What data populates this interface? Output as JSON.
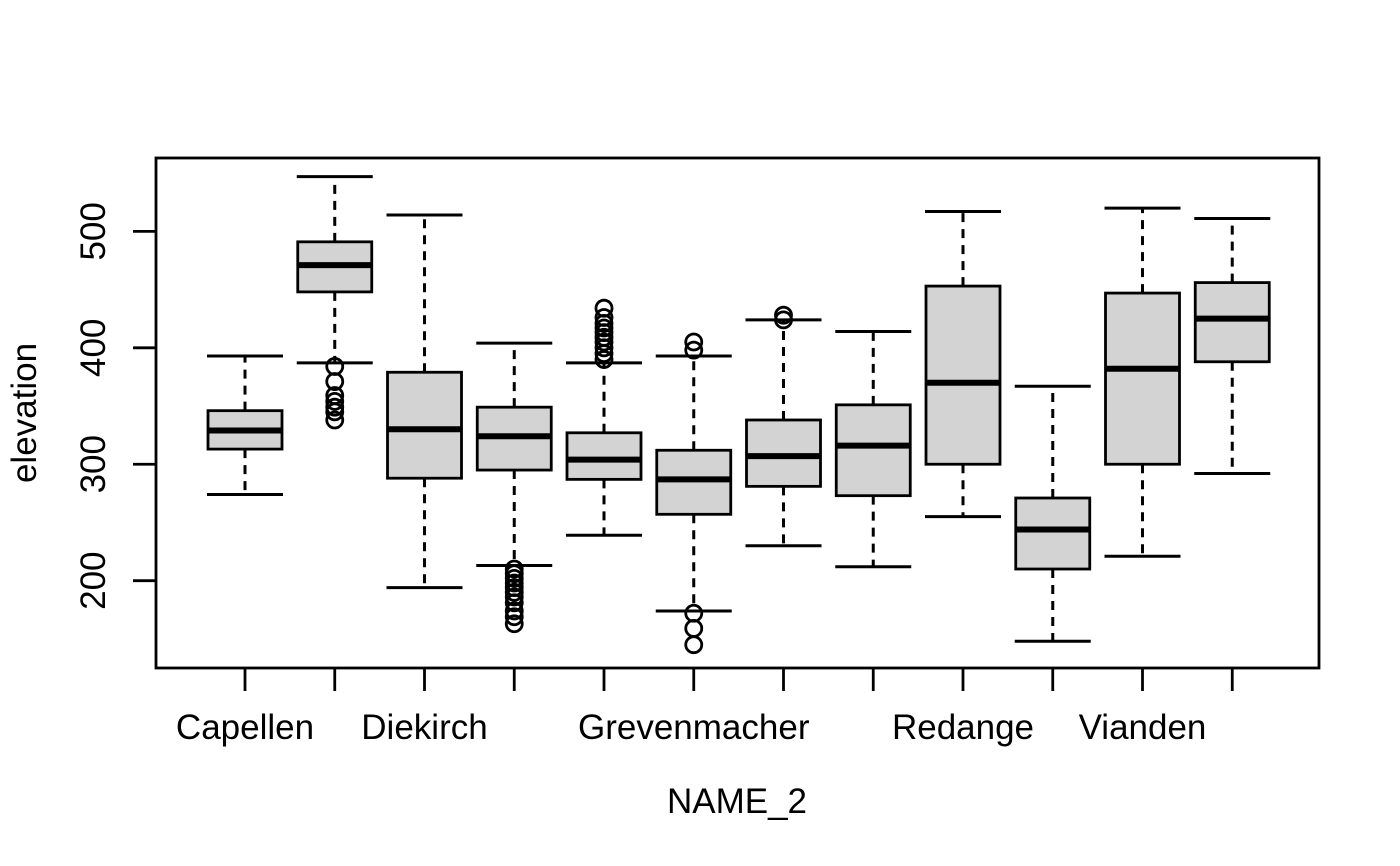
{
  "figure": {
    "background": "#ffffff"
  },
  "chart_data": {
    "type": "boxplot",
    "title": "",
    "xlabel": "NAME_2",
    "ylabel": "elevation",
    "ylim": [
      125,
      563
    ],
    "yticks": [
      200,
      300,
      400,
      500
    ],
    "grid": false,
    "legend": false,
    "whisker_line_style": "dashed",
    "colors": {
      "box_fill": "#d3d3d3",
      "line": "#000000",
      "background": "#ffffff"
    },
    "visible_x_tick_labels": [
      "Capellen",
      "Diekirch",
      "Grevenmacher",
      "Redange",
      "Vianden"
    ],
    "boxes": [
      {
        "position": 1,
        "label": "Capellen",
        "whisker_low": 274,
        "q1": 313,
        "median": 329,
        "q3": 346,
        "whisker_high": 393,
        "outliers": []
      },
      {
        "position": 2,
        "label": "",
        "whisker_low": 387,
        "q1": 448,
        "median": 471,
        "q3": 491,
        "whisker_high": 547,
        "outliers": [
          384,
          371,
          359,
          354,
          349,
          345,
          338
        ]
      },
      {
        "position": 3,
        "label": "Diekirch",
        "whisker_low": 194,
        "q1": 288,
        "median": 330,
        "q3": 379,
        "whisker_high": 514,
        "outliers": []
      },
      {
        "position": 4,
        "label": "",
        "whisker_low": 213,
        "q1": 295,
        "median": 324,
        "q3": 349,
        "whisker_high": 404,
        "outliers": [
          210,
          206,
          202,
          198,
          194,
          190,
          186,
          181,
          174,
          169,
          163
        ]
      },
      {
        "position": 5,
        "label": "",
        "whisker_low": 239,
        "q1": 287,
        "median": 304,
        "q3": 327,
        "whisker_high": 387,
        "outliers": [
          434,
          426,
          421,
          417,
          413,
          409,
          405,
          400,
          395,
          390
        ]
      },
      {
        "position": 6,
        "label": "Grevenmacher",
        "whisker_low": 174,
        "q1": 257,
        "median": 287,
        "q3": 312,
        "whisker_high": 393,
        "outliers": [
          405,
          398,
          172,
          159,
          145
        ]
      },
      {
        "position": 7,
        "label": "",
        "whisker_low": 230,
        "q1": 281,
        "median": 307,
        "q3": 338,
        "whisker_high": 424,
        "outliers": [
          428,
          424
        ]
      },
      {
        "position": 8,
        "label": "",
        "whisker_low": 212,
        "q1": 273,
        "median": 316,
        "q3": 351,
        "whisker_high": 414,
        "outliers": []
      },
      {
        "position": 9,
        "label": "Redange",
        "whisker_low": 255,
        "q1": 300,
        "median": 370,
        "q3": 453,
        "whisker_high": 517,
        "outliers": []
      },
      {
        "position": 10,
        "label": "",
        "whisker_low": 148,
        "q1": 210,
        "median": 244,
        "q3": 271,
        "whisker_high": 367,
        "outliers": []
      },
      {
        "position": 11,
        "label": "Vianden",
        "whisker_low": 221,
        "q1": 300,
        "median": 382,
        "q3": 447,
        "whisker_high": 520,
        "outliers": []
      },
      {
        "position": 12,
        "label": "",
        "whisker_low": 292,
        "q1": 388,
        "median": 425,
        "q3": 456,
        "whisker_high": 511,
        "outliers": []
      }
    ]
  }
}
